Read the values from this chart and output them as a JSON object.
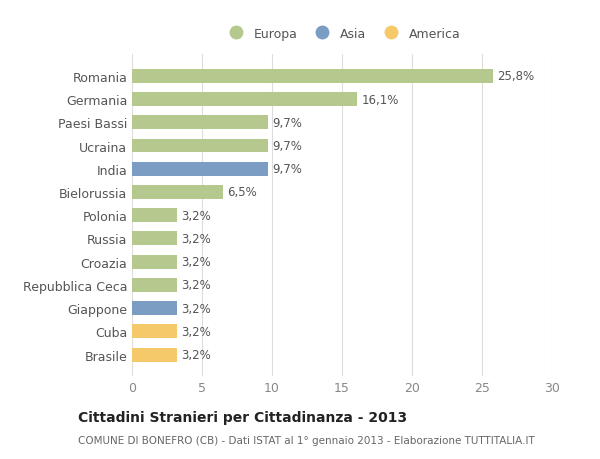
{
  "categories": [
    "Romania",
    "Germania",
    "Paesi Bassi",
    "Ucraina",
    "India",
    "Bielorussia",
    "Polonia",
    "Russia",
    "Croazia",
    "Repubblica Ceca",
    "Giappone",
    "Cuba",
    "Brasile"
  ],
  "values": [
    25.8,
    16.1,
    9.7,
    9.7,
    9.7,
    6.5,
    3.2,
    3.2,
    3.2,
    3.2,
    3.2,
    3.2,
    3.2
  ],
  "labels": [
    "25,8%",
    "16,1%",
    "9,7%",
    "9,7%",
    "9,7%",
    "6,5%",
    "3,2%",
    "3,2%",
    "3,2%",
    "3,2%",
    "3,2%",
    "3,2%",
    "3,2%"
  ],
  "bar_colors": [
    "#b5c98e",
    "#b5c98e",
    "#b5c98e",
    "#b5c98e",
    "#7b9dc4",
    "#b5c98e",
    "#b5c98e",
    "#b5c98e",
    "#b5c98e",
    "#b5c98e",
    "#7b9dc4",
    "#f5c96a",
    "#f5c96a"
  ],
  "xlim": [
    0,
    30
  ],
  "xticks": [
    0,
    5,
    10,
    15,
    20,
    25,
    30
  ],
  "title": "Cittadini Stranieri per Cittadinanza - 2013",
  "subtitle": "COMUNE DI BONEFRO (CB) - Dati ISTAT al 1° gennaio 2013 - Elaborazione TUTTITALIA.IT",
  "legend_labels": [
    "Europa",
    "Asia",
    "America"
  ],
  "legend_colors": [
    "#b5c98e",
    "#7b9dc4",
    "#f5c96a"
  ],
  "bg_color": "#ffffff",
  "grid_color": "#dddddd"
}
